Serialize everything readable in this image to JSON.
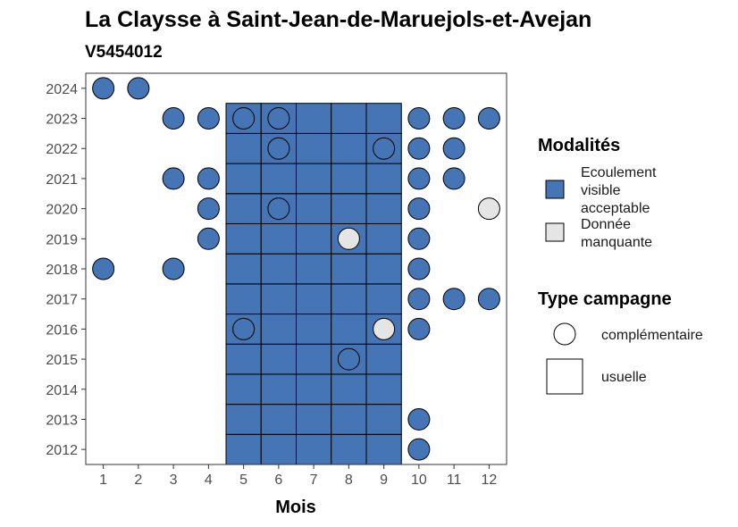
{
  "chart_data": {
    "type": "heatmap",
    "title": "La Claysse à Saint-Jean-de-Maruejols-et-Avejan",
    "subtitle": "V5454012",
    "xlabel": "Mois",
    "ylabel": "",
    "x_ticks": [
      1,
      2,
      3,
      4,
      5,
      6,
      7,
      8,
      9,
      10,
      11,
      12
    ],
    "y_ticks": [
      2012,
      2013,
      2014,
      2015,
      2016,
      2017,
      2018,
      2019,
      2020,
      2021,
      2022,
      2023,
      2024
    ],
    "xlim": [
      0.5,
      12.5
    ],
    "ylim": [
      2011.5,
      2024.5
    ],
    "grid": false,
    "colors": {
      "ecoulement_visible_acceptable": "#4575b4",
      "donnee_manquante": "#e5e5e5"
    },
    "legend": {
      "placement": "right",
      "modalites_title": "Modalités",
      "modalites": [
        {
          "key": "ecoulement_visible_acceptable",
          "label_lines": [
            "Ecoulement",
            "visible",
            "acceptable"
          ]
        },
        {
          "key": "donnee_manquante",
          "label_lines": [
            "Donnée",
            "manquante"
          ]
        }
      ],
      "type_title": "Type campagne",
      "types": [
        {
          "key": "complementaire",
          "label": "complémentaire",
          "shape": "circle"
        },
        {
          "key": "usuelle",
          "label": "usuelle",
          "shape": "square"
        }
      ]
    },
    "usuelle": {
      "months": [
        5,
        6,
        7,
        8,
        9
      ],
      "years_from": 2012,
      "years_to": 2023,
      "modalite": "ecoulement_visible_acceptable"
    },
    "complementaire": [
      {
        "year": 2024,
        "month": 1,
        "modalite": "ecoulement_visible_acceptable"
      },
      {
        "year": 2024,
        "month": 2,
        "modalite": "ecoulement_visible_acceptable"
      },
      {
        "year": 2023,
        "month": 3,
        "modalite": "ecoulement_visible_acceptable"
      },
      {
        "year": 2023,
        "month": 4,
        "modalite": "ecoulement_visible_acceptable"
      },
      {
        "year": 2023,
        "month": 5,
        "modalite": "ecoulement_visible_acceptable"
      },
      {
        "year": 2023,
        "month": 6,
        "modalite": "ecoulement_visible_acceptable"
      },
      {
        "year": 2023,
        "month": 10,
        "modalite": "ecoulement_visible_acceptable"
      },
      {
        "year": 2023,
        "month": 11,
        "modalite": "ecoulement_visible_acceptable"
      },
      {
        "year": 2023,
        "month": 12,
        "modalite": "ecoulement_visible_acceptable"
      },
      {
        "year": 2022,
        "month": 6,
        "modalite": "ecoulement_visible_acceptable"
      },
      {
        "year": 2022,
        "month": 9,
        "modalite": "ecoulement_visible_acceptable"
      },
      {
        "year": 2022,
        "month": 10,
        "modalite": "ecoulement_visible_acceptable"
      },
      {
        "year": 2022,
        "month": 11,
        "modalite": "ecoulement_visible_acceptable"
      },
      {
        "year": 2021,
        "month": 3,
        "modalite": "ecoulement_visible_acceptable"
      },
      {
        "year": 2021,
        "month": 4,
        "modalite": "ecoulement_visible_acceptable"
      },
      {
        "year": 2021,
        "month": 10,
        "modalite": "ecoulement_visible_acceptable"
      },
      {
        "year": 2021,
        "month": 11,
        "modalite": "ecoulement_visible_acceptable"
      },
      {
        "year": 2020,
        "month": 4,
        "modalite": "ecoulement_visible_acceptable"
      },
      {
        "year": 2020,
        "month": 6,
        "modalite": "ecoulement_visible_acceptable"
      },
      {
        "year": 2020,
        "month": 10,
        "modalite": "ecoulement_visible_acceptable"
      },
      {
        "year": 2020,
        "month": 12,
        "modalite": "donnee_manquante"
      },
      {
        "year": 2019,
        "month": 4,
        "modalite": "ecoulement_visible_acceptable"
      },
      {
        "year": 2019,
        "month": 8,
        "modalite": "donnee_manquante"
      },
      {
        "year": 2019,
        "month": 10,
        "modalite": "ecoulement_visible_acceptable"
      },
      {
        "year": 2018,
        "month": 1,
        "modalite": "ecoulement_visible_acceptable"
      },
      {
        "year": 2018,
        "month": 3,
        "modalite": "ecoulement_visible_acceptable"
      },
      {
        "year": 2018,
        "month": 10,
        "modalite": "ecoulement_visible_acceptable"
      },
      {
        "year": 2017,
        "month": 10,
        "modalite": "ecoulement_visible_acceptable"
      },
      {
        "year": 2017,
        "month": 11,
        "modalite": "ecoulement_visible_acceptable"
      },
      {
        "year": 2017,
        "month": 12,
        "modalite": "ecoulement_visible_acceptable"
      },
      {
        "year": 2016,
        "month": 5,
        "modalite": "ecoulement_visible_acceptable"
      },
      {
        "year": 2016,
        "month": 9,
        "modalite": "donnee_manquante"
      },
      {
        "year": 2016,
        "month": 10,
        "modalite": "ecoulement_visible_acceptable"
      },
      {
        "year": 2015,
        "month": 8,
        "modalite": "ecoulement_visible_acceptable"
      },
      {
        "year": 2013,
        "month": 10,
        "modalite": "ecoulement_visible_acceptable"
      },
      {
        "year": 2012,
        "month": 10,
        "modalite": "ecoulement_visible_acceptable"
      }
    ]
  }
}
